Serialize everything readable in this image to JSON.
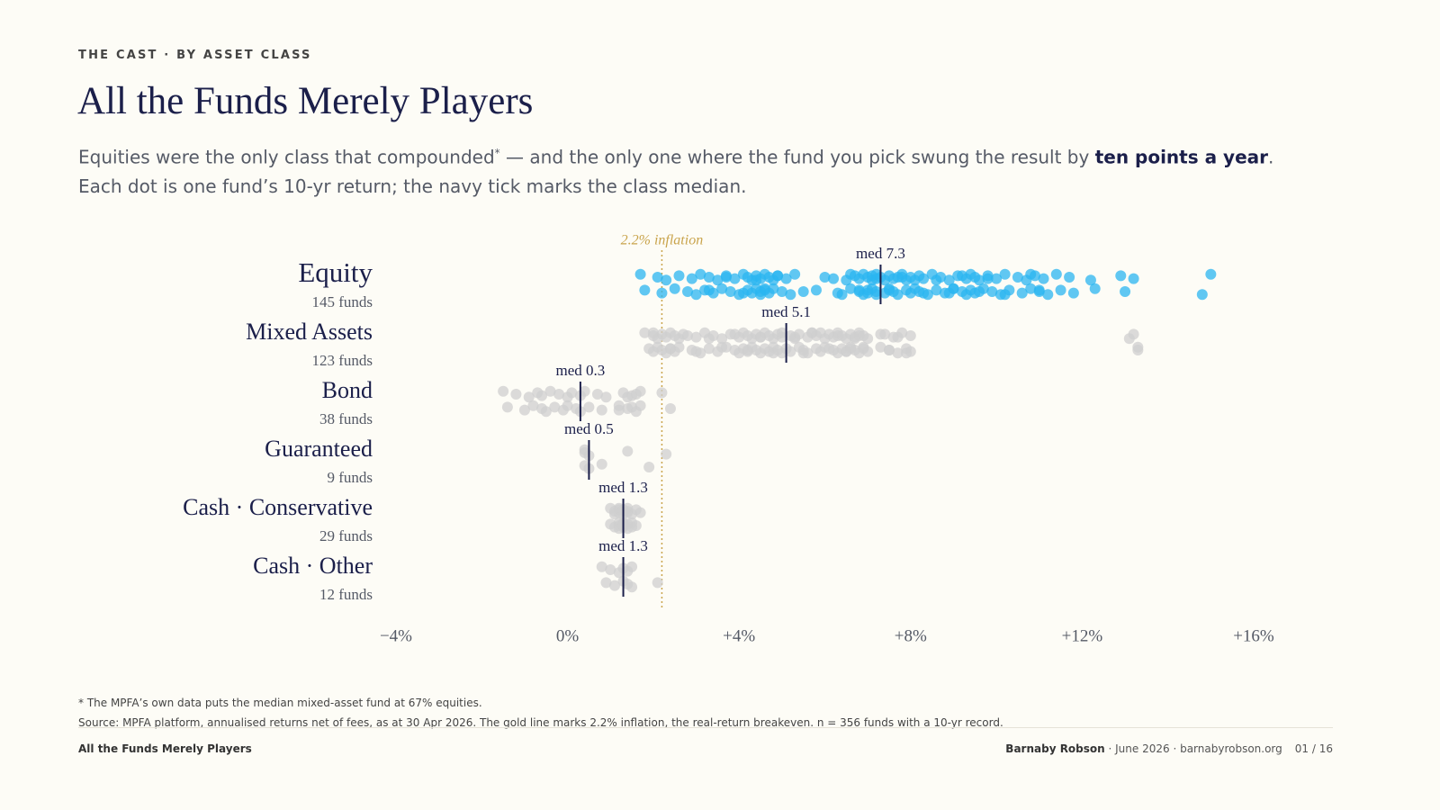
{
  "header": {
    "kicker": "THE CAST · BY ASSET CLASS",
    "title": "All the Funds Merely Players",
    "subtitle": {
      "lead": "Equities were the only class that compounded",
      "note_mark": "*",
      "middle": " — and the only one where the fund you pick swung the result by ",
      "emphasis": "ten points a year",
      "end": "."
    },
    "subtitle_line2": "Each dot is one fund’s 10-yr return; the navy tick marks the class median."
  },
  "chart_data": {
    "type": "strip",
    "xlim": [
      -4,
      16
    ],
    "xticks": [
      {
        "value": -4,
        "label": "−4%"
      },
      {
        "value": 0,
        "label": "0%"
      },
      {
        "value": 4,
        "label": "+4%"
      },
      {
        "value": 8,
        "label": "+8%"
      },
      {
        "value": 12,
        "label": "+12%"
      },
      {
        "value": 16,
        "label": "+16%"
      }
    ],
    "reference": {
      "value": 2.2,
      "label": "2.2% inflation",
      "color": "#c9a44c"
    },
    "median_color": "#1b1f4a",
    "series": [
      {
        "name": "Equity",
        "count_label": "145 funds",
        "color": "#2bb5f0",
        "median": 7.3,
        "median_label": "med 7.3",
        "values": [
          1.7,
          1.8,
          2.1,
          2.2,
          2.3,
          2.5,
          2.6,
          2.8,
          2.9,
          3.0,
          3.1,
          3.2,
          3.3,
          3.4,
          3.5,
          3.6,
          3.7,
          3.8,
          3.9,
          4.0,
          4.1,
          4.2,
          4.2,
          4.3,
          4.3,
          4.4,
          4.4,
          4.5,
          4.5,
          4.5,
          4.6,
          4.6,
          4.7,
          4.7,
          4.8,
          4.8,
          4.9,
          5.0,
          5.1,
          5.2,
          5.3,
          5.8,
          6.0,
          6.3,
          6.5,
          6.6,
          6.7,
          6.8,
          6.8,
          6.9,
          6.9,
          7.0,
          7.0,
          7.0,
          7.1,
          7.1,
          7.1,
          7.2,
          7.2,
          7.2,
          7.2,
          3.3,
          3.7,
          4.1,
          4.4,
          4.6,
          4.9,
          5.5,
          6.2,
          6.4,
          6.6,
          6.8,
          7.3,
          7.4,
          7.4,
          7.5,
          7.5,
          7.6,
          7.6,
          7.7,
          7.8,
          7.9,
          8.0,
          8.0,
          8.1,
          8.1,
          8.2,
          8.2,
          8.3,
          8.4,
          8.5,
          8.6,
          8.7,
          8.8,
          8.9,
          9.0,
          9.1,
          9.2,
          9.3,
          9.3,
          9.4,
          9.4,
          9.5,
          9.5,
          9.6,
          9.7,
          9.8,
          9.9,
          10.0,
          10.1,
          10.2,
          10.3,
          10.5,
          10.6,
          10.7,
          10.8,
          10.9,
          11.0,
          11.1,
          11.2,
          11.4,
          11.5,
          11.7,
          11.8,
          12.2,
          12.3,
          12.9,
          13.0,
          13.2,
          14.8,
          15.0,
          7.5,
          7.8,
          8.3,
          8.6,
          9.0,
          9.2,
          9.6,
          9.8,
          10.2,
          10.8,
          11.0,
          7.7,
          8.9,
          7.9
        ]
      },
      {
        "name": "Mixed Assets",
        "count_label": "123 funds",
        "color": "#cfcfcf",
        "median": 5.1,
        "median_label": "med 5.1",
        "values": [
          1.8,
          1.9,
          2.0,
          2.0,
          2.1,
          2.1,
          2.2,
          2.2,
          2.3,
          2.3,
          2.4,
          2.4,
          2.5,
          2.5,
          2.6,
          2.6,
          2.7,
          2.9,
          3.0,
          3.1,
          3.2,
          3.3,
          3.4,
          3.5,
          3.6,
          3.7,
          3.8,
          3.9,
          4.0,
          4.0,
          4.1,
          4.1,
          4.2,
          4.2,
          4.3,
          4.3,
          4.4,
          4.4,
          4.5,
          4.5,
          4.6,
          4.6,
          4.7,
          4.7,
          4.8,
          4.8,
          4.9,
          4.9,
          5.0,
          5.0,
          2.0,
          2.4,
          2.8,
          3.0,
          3.3,
          3.6,
          3.9,
          4.2,
          4.5,
          4.8,
          5.0,
          5.1,
          5.2,
          5.2,
          5.3,
          5.4,
          5.4,
          5.5,
          5.6,
          5.6,
          5.7,
          5.8,
          5.8,
          5.9,
          6.0,
          6.0,
          6.1,
          6.2,
          6.2,
          6.3,
          6.3,
          6.4,
          6.4,
          6.5,
          6.5,
          6.6,
          6.6,
          6.7,
          6.7,
          6.8,
          6.8,
          6.9,
          6.9,
          7.0,
          7.0,
          7.3,
          7.4,
          7.5,
          7.6,
          7.7,
          7.8,
          7.9,
          8.0,
          8.0,
          13.1,
          13.3,
          13.2,
          13.3,
          5.3,
          5.5,
          5.7,
          6.1,
          6.3,
          6.5,
          6.7,
          6.9,
          7.3,
          7.5,
          7.7,
          7.9,
          5.9,
          6.6,
          6.8
        ]
      },
      {
        "name": "Bond",
        "count_label": "38 funds",
        "color": "#cfcfcf",
        "median": 0.3,
        "median_label": "med 0.3",
        "values": [
          -1.5,
          -1.4,
          -1.2,
          -1.0,
          -0.9,
          -0.8,
          -0.7,
          -0.6,
          -0.6,
          -0.5,
          -0.4,
          -0.3,
          -0.2,
          -0.1,
          0.0,
          0.0,
          0.1,
          0.2,
          0.3,
          0.3,
          0.4,
          0.5,
          0.7,
          0.8,
          0.9,
          1.2,
          1.3,
          1.4,
          1.5,
          1.6,
          1.7,
          1.5,
          1.6,
          1.2,
          1.4,
          1.7,
          2.2,
          2.4
        ]
      },
      {
        "name": "Guaranteed",
        "count_label": "9 funds",
        "color": "#cfcfcf",
        "median": 0.5,
        "median_label": "med 0.5",
        "values": [
          0.4,
          0.4,
          0.4,
          0.5,
          0.5,
          0.8,
          1.4,
          1.9,
          2.3
        ]
      },
      {
        "name": "Cash · Conservative",
        "count_label": "29 funds",
        "color": "#cfcfcf",
        "median": 1.3,
        "median_label": "med 1.3",
        "values": [
          1.0,
          1.0,
          1.1,
          1.1,
          1.1,
          1.2,
          1.2,
          1.2,
          1.2,
          1.2,
          1.2,
          1.3,
          1.3,
          1.3,
          1.3,
          1.3,
          1.3,
          1.3,
          1.4,
          1.4,
          1.4,
          1.4,
          1.4,
          1.5,
          1.5,
          1.5,
          1.6,
          1.6,
          1.7
        ]
      },
      {
        "name": "Cash · Other",
        "count_label": "12 funds",
        "color": "#cfcfcf",
        "median": 1.3,
        "median_label": "med 1.3",
        "values": [
          0.8,
          0.9,
          1.0,
          1.1,
          1.2,
          1.3,
          1.3,
          1.4,
          1.4,
          1.5,
          1.5,
          2.1
        ]
      }
    ]
  },
  "footnotes": [
    "* The MPFA’s own data puts the median mixed-asset fund at 67% equities.",
    "Source: MPFA platform, annualised returns net of fees, as at 30 Apr 2026. The gold line marks 2.2% inflation, the real-return breakeven. n = 356 funds with a 10-yr record."
  ],
  "footer": {
    "left": "All the Funds Merely Players",
    "author": "Barnaby Robson",
    "details": " · June 2026 · barnabyrobson.org",
    "page": "01 / 16"
  }
}
